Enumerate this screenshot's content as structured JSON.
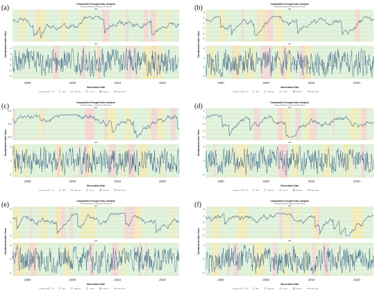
{
  "colors": {
    "background": "#dff0d8",
    "line": "#2f5f86",
    "pink": "#f6d0d2",
    "yellow": "#f5eab2",
    "grid": "#ffffff"
  },
  "legend": {
    "title": "Drought Level",
    "items": [
      {
        "label": "No",
        "color": "#dff0d8"
      },
      {
        "label": "Mild",
        "color": "#f5eab2"
      },
      {
        "label": "Moderate",
        "color": "#f7d9a8"
      },
      {
        "label": "Severe",
        "color": "#f6d0d2"
      },
      {
        "label": "Extreme",
        "color": "#f0a8ad"
      },
      {
        "label": "Index Value",
        "color": "#2f5f86"
      }
    ]
  },
  "chart_data": [
    {
      "panel_label": "(a)",
      "type": "line",
      "title": "Comparative Drought Index Analysis",
      "subtitle": "Temporal Patterns of Selected SPI Indices",
      "xlabel": "Observation Date",
      "ylabel": "Standardized Index Value",
      "x_ticks": [
        "1990",
        "2000",
        "2010",
        "2020"
      ],
      "top_y_ticks": [],
      "bottom_y_ticks": [
        "2",
        "1",
        "0",
        "-1",
        "-2",
        "-3"
      ],
      "top_ylim": [
        -3,
        2
      ],
      "bottom_ylim": [
        -3,
        3
      ]
    },
    {
      "panel_label": "(b)",
      "type": "line",
      "title": "Comparative Drought Index Analysis",
      "subtitle": "Temporal Patterns of Selected SPI Indices",
      "xlabel": "Observation Date",
      "ylabel": "Standardized Index Value",
      "x_ticks": [
        "1990",
        "2000",
        "2010",
        "2020"
      ],
      "top_y_ticks": [
        "3",
        "2",
        "1",
        "0",
        "-1",
        "-2"
      ],
      "bottom_y_ticks": [
        "4",
        "2",
        "0",
        "-2"
      ],
      "top_ylim": [
        -2,
        3
      ],
      "bottom_ylim": [
        -3,
        4
      ]
    },
    {
      "panel_label": "(c)",
      "type": "line",
      "title": "Comparative Drought Index Analysis",
      "subtitle": "Temporal Patterns of Selected SPI Indices",
      "xlabel": "Observation Date",
      "ylabel": "Standardized Index Value",
      "x_ticks": [
        "1990",
        "2000",
        "2010",
        "2020"
      ],
      "top_y_ticks": [
        "0.0",
        "-2.5",
        "-5.0"
      ],
      "bottom_y_ticks": [
        "2",
        "0",
        "-2"
      ],
      "top_ylim": [
        -5.5,
        1.5
      ],
      "bottom_ylim": [
        -3,
        3
      ]
    },
    {
      "panel_label": "(d)",
      "type": "line",
      "title": "Comparative Drought Index Analysis",
      "subtitle": "Temporal Patterns of Selected SPI Indices",
      "xlabel": "Observation Date",
      "ylabel": "Standardized Index Value",
      "x_ticks": [
        "1990",
        "2000",
        "2010",
        "2020"
      ],
      "top_y_ticks": [
        "2",
        "1",
        "0",
        "-1",
        "-2"
      ],
      "bottom_y_ticks": [
        "2",
        "0",
        "-2"
      ],
      "top_ylim": [
        -2.5,
        2.5
      ],
      "bottom_ylim": [
        -3,
        3
      ]
    },
    {
      "panel_label": "(e)",
      "type": "line",
      "title": "Comparative Drought Index Analysis",
      "subtitle": "Temporal Patterns of Selected SPI Indices",
      "xlabel": "Observation Date",
      "ylabel": "Standardized Index Value",
      "x_ticks": [
        "1990",
        "2000",
        "2010",
        "2020"
      ],
      "top_y_ticks": [
        "2",
        "0",
        "-2"
      ],
      "bottom_y_ticks": [
        "2",
        "0",
        "-2"
      ],
      "top_ylim": [
        -3,
        3
      ],
      "bottom_ylim": [
        -3,
        3
      ]
    },
    {
      "panel_label": "(f)",
      "type": "line",
      "title": "Comparative Drought Index Analysis",
      "subtitle": "Temporal Patterns of Selected SPI Indices",
      "xlabel": "Observation Date",
      "ylabel": "Standardized Index Value",
      "x_ticks": [
        "1990",
        "2000",
        "2010",
        "2020"
      ],
      "top_y_ticks": [
        "2",
        "1",
        "0",
        "-1",
        "-2"
      ],
      "bottom_y_ticks": [
        "2",
        "0",
        "-2"
      ],
      "top_ylim": [
        -2.5,
        2.5
      ],
      "bottom_ylim": [
        -3,
        3
      ]
    }
  ]
}
